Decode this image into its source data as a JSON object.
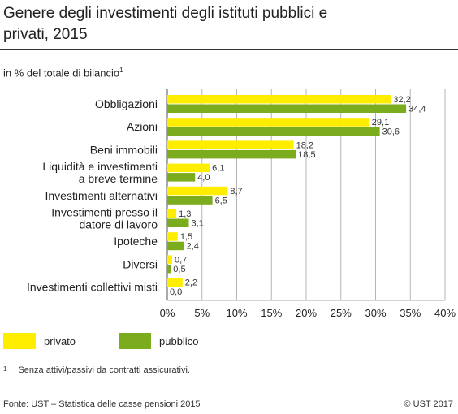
{
  "header": {
    "title": "Genere degli investimenti degli istituti pubblici e privati, 2015",
    "subtitle": "in % del totale di bilancio",
    "subtitle_note": "1"
  },
  "chart_data": {
    "type": "bar",
    "orientation": "horizontal",
    "categories": [
      [
        "Obbligazioni"
      ],
      [
        "Azioni"
      ],
      [
        "Beni immobili"
      ],
      [
        "Liquidità e investimenti",
        "a breve termine"
      ],
      [
        "Investimenti alternativi"
      ],
      [
        "Investimenti presso il",
        "datore di lavoro"
      ],
      [
        "Ipoteche"
      ],
      [
        "Diversi"
      ],
      [
        "Investimenti collettivi misti"
      ]
    ],
    "series": [
      {
        "name": "privato",
        "color": "#ffed00",
        "values": [
          32.2,
          29.1,
          18.2,
          6.1,
          8.7,
          1.3,
          1.5,
          0.7,
          2.2
        ],
        "labels": [
          "32,2",
          "29,1",
          "18,2",
          "6,1",
          "8,7",
          "1,3",
          "1,5",
          "0,7",
          "2,2"
        ]
      },
      {
        "name": "pubblico",
        "color": "#7bac1e",
        "values": [
          34.4,
          30.6,
          18.5,
          4.0,
          6.5,
          3.1,
          2.4,
          0.5,
          0.0
        ],
        "labels": [
          "34,4",
          "30,6",
          "18,5",
          "4,0",
          "6,5",
          "3,1",
          "2,4",
          "0,5",
          "0,0"
        ]
      }
    ],
    "xlim": [
      0,
      40
    ],
    "xticks": [
      "0%",
      "5%",
      "10%",
      "15%",
      "20%",
      "25%",
      "30%",
      "35%",
      "40%"
    ],
    "grid": true,
    "legend_position": "bottom-left"
  },
  "legend": [
    {
      "label": "privato",
      "color": "#ffed00"
    },
    {
      "label": "pubblico",
      "color": "#7bac1e"
    }
  ],
  "footnote": {
    "number": "1",
    "text": "Senza attivi/passivi da contratti assicurativi."
  },
  "footer": {
    "source": "Fonte: UST – Statistica delle casse pensioni 2015",
    "copyright": "© UST 2017"
  }
}
